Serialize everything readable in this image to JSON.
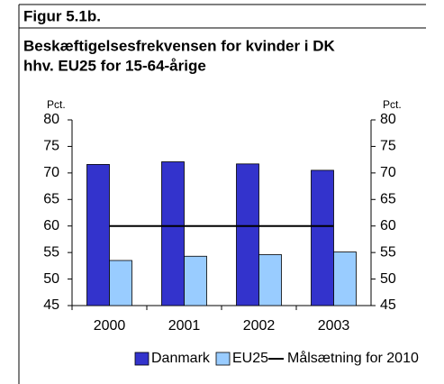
{
  "chart_data": {
    "type": "bar",
    "figure_label": "Figur 5.1b.",
    "title": [
      "Beskæftigelsesfrekvensen for kvinder i DK",
      "hhv. EU25 for 15-64-årige"
    ],
    "y_label": "Pct.",
    "y2_label": "Pct.",
    "categories": [
      "2000",
      "2001",
      "2002",
      "2003"
    ],
    "series": [
      {
        "name": "Danmark",
        "color": "#3333cc",
        "values": [
          71.6,
          72.1,
          71.7,
          70.5
        ]
      },
      {
        "name": "EU25",
        "color": "#99ccff",
        "values": [
          53.5,
          54.3,
          54.6,
          55.1
        ]
      },
      {
        "name": "Målsætning for 2010",
        "color": "#000000",
        "type": "line",
        "values": [
          60,
          60,
          60,
          60
        ]
      }
    ],
    "ylim": [
      45,
      80
    ],
    "yticks": [
      45,
      50,
      55,
      60,
      65,
      70,
      75,
      80
    ],
    "y2lim": [
      45,
      80
    ],
    "y2ticks": [
      45,
      50,
      55,
      60,
      65,
      70,
      75,
      80
    ],
    "legend": "bottom"
  }
}
